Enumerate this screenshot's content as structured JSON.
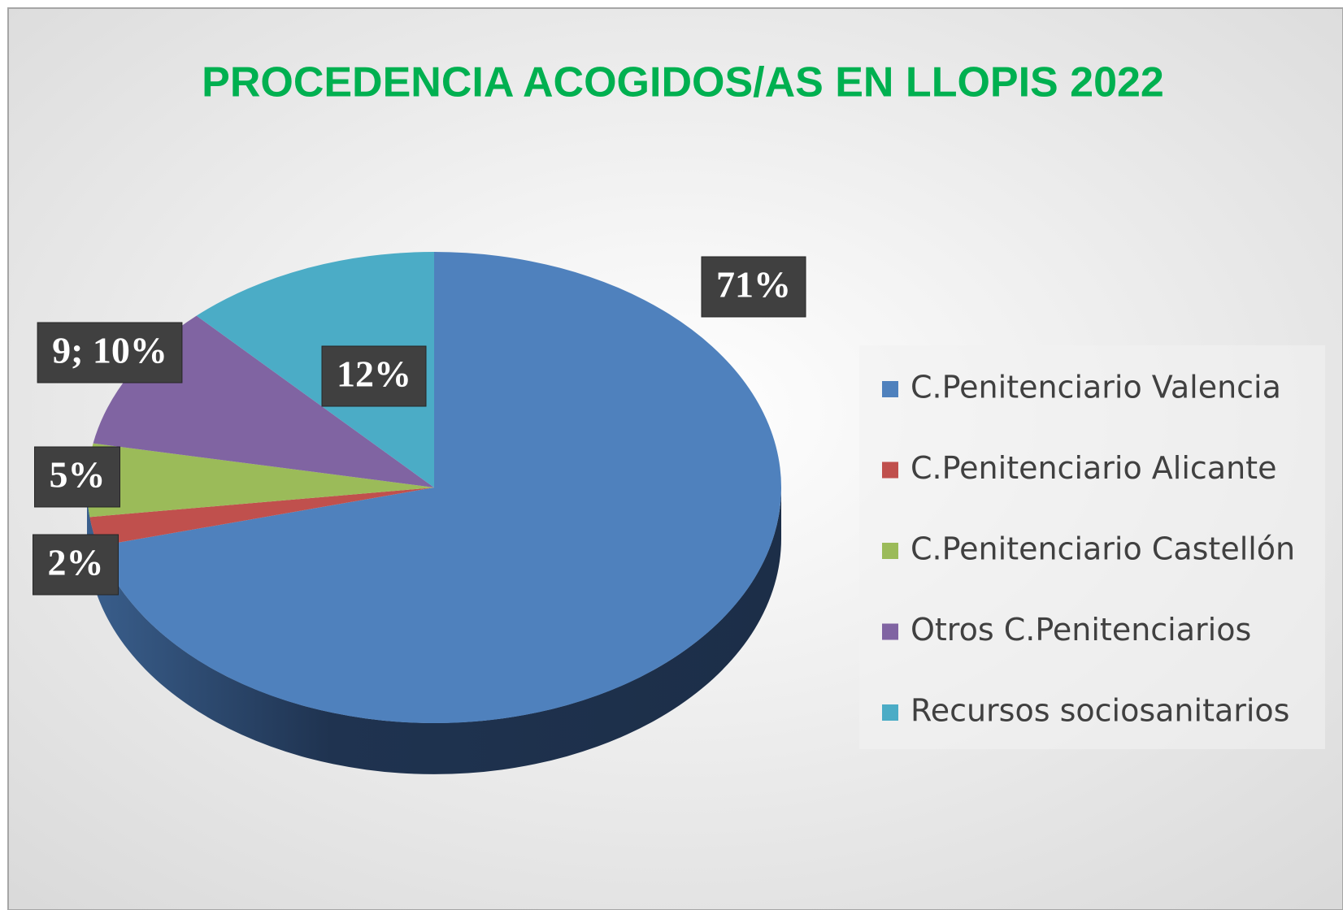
{
  "chart_data": {
    "type": "pie",
    "title": "PROCEDENCIA ACOGIDOS/AS EN LLOPIS 2022",
    "categories": [
      "C.Penitenciario Valencia",
      "C.Penitenciario Alicante",
      "C.Penitenciario Castellón",
      "Otros C.Penitenciarios",
      "Recursos sociosanitarios"
    ],
    "values": [
      71,
      2,
      5,
      10,
      12
    ],
    "value_labels": [
      "71%",
      "2%",
      "5%",
      "9; 10%",
      "12%"
    ],
    "colors": [
      "#4f81bd",
      "#c0504d",
      "#9bbb59",
      "#8064a2",
      "#4bacc6"
    ],
    "legend": "right"
  }
}
